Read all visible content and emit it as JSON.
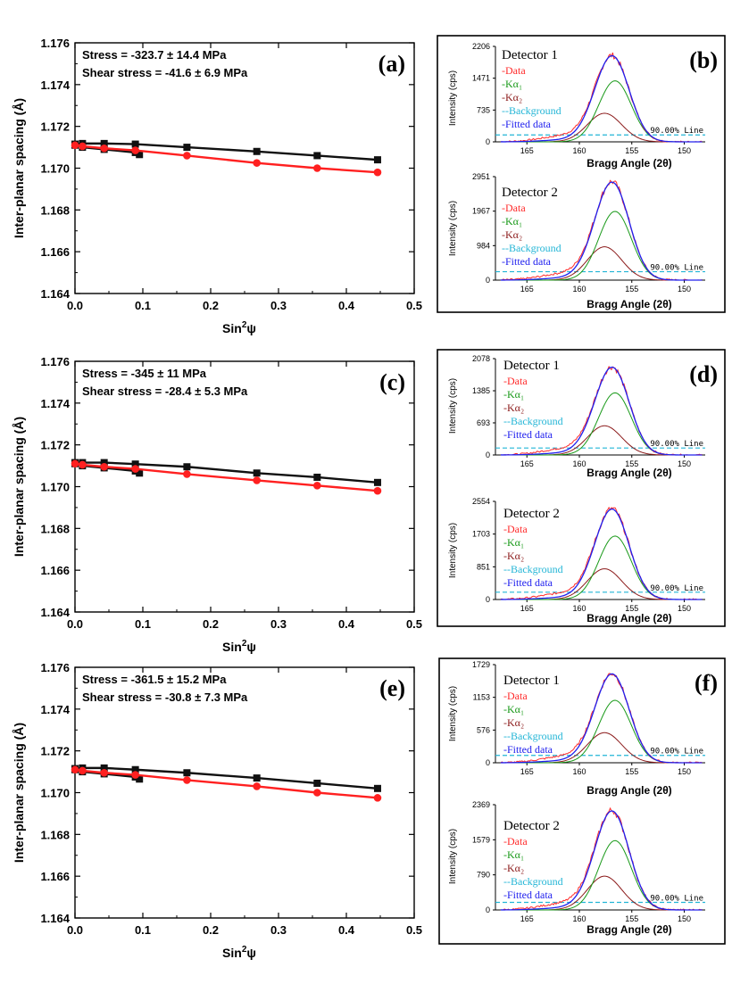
{
  "colors": {
    "black_series": "#111111",
    "red_series": "#ff2020",
    "data": "#ff2a2a",
    "ka1": "#1a9a1a",
    "ka2": "#8b1a1a",
    "background": "#22b5d6",
    "fitted": "#2020ee"
  },
  "chart_data": [
    {
      "type": "scatter",
      "panel": "(a)",
      "xlabel": "Sin",
      "xlabel_sup": "2",
      "xlabel_suffix": "ψ",
      "ylabel": "Inter-planar spacing (Å)",
      "xlim": [
        0,
        0.5
      ],
      "ylim": [
        1.164,
        1.176
      ],
      "xticks": [
        "0.0",
        "0.1",
        "0.2",
        "0.3",
        "0.4",
        "0.5"
      ],
      "yticks": [
        "1.164",
        "1.166",
        "1.168",
        "1.170",
        "1.172",
        "1.174",
        "1.176"
      ],
      "annotations": [
        "Stress = -323.7 ± 14.4 MPa",
        "Shear stress = -41.6 ± 6.9 MPa"
      ],
      "series": [
        {
          "color": "black",
          "marker": "square",
          "x": [
            0.0,
            0.011,
            0.043,
            0.089,
            0.165,
            0.268,
            0.357,
            0.446
          ],
          "y": [
            1.17115,
            1.17118,
            1.17118,
            1.17115,
            1.171,
            1.1708,
            1.1706,
            1.1704
          ]
        },
        {
          "color": "black",
          "marker": "square",
          "x": [
            0.0,
            0.011,
            0.043,
            0.089,
            0.095
          ],
          "y": [
            1.1711,
            1.171,
            1.1709,
            1.17075,
            1.17065
          ]
        },
        {
          "color": "red",
          "marker": "circle",
          "x": [
            0.0,
            0.011,
            0.043,
            0.089,
            0.165,
            0.268,
            0.357,
            0.446
          ],
          "y": [
            1.1711,
            1.17105,
            1.17095,
            1.17085,
            1.1706,
            1.17025,
            1.17,
            1.1698
          ]
        }
      ]
    },
    {
      "type": "line",
      "panel": "(b)",
      "detectors": [
        {
          "name": "Detector 1",
          "yticks": [
            "0",
            "735",
            "1471",
            "2206"
          ],
          "ymax": 2206,
          "peak": 2150,
          "ka1_peak": 1410,
          "ka2_peak": 660,
          "background_level": 160
        },
        {
          "name": "Detector 2",
          "yticks": [
            "0",
            "984",
            "1967",
            "2951"
          ],
          "ymax": 2951,
          "peak": 2900,
          "ka1_peak": 1960,
          "ka2_peak": 950,
          "background_level": 240
        }
      ],
      "legend": [
        "-Data",
        "-Kα₁",
        "-Kα₂",
        "--Background",
        "-Fitted data"
      ],
      "xticks": [
        "165",
        "160",
        "155",
        "150"
      ],
      "xlabel": "Bragg Angle (2θ)",
      "ylabel": "Intensity (cps)",
      "line_label": "90.00% Line"
    },
    {
      "type": "scatter",
      "panel": "(c)",
      "xlabel": "Sin",
      "xlabel_sup": "2",
      "xlabel_suffix": "ψ",
      "ylabel": "Inter-planar spacing (Å)",
      "xlim": [
        0,
        0.5
      ],
      "ylim": [
        1.164,
        1.176
      ],
      "xticks": [
        "0.0",
        "0.1",
        "0.2",
        "0.3",
        "0.4",
        "0.5"
      ],
      "yticks": [
        "1.164",
        "1.166",
        "1.168",
        "1.170",
        "1.172",
        "1.174",
        "1.176"
      ],
      "annotations": [
        "Stress = -345 ± 11 MPa",
        "Shear stress = -28.4 ± 5.3 MPa"
      ],
      "series": [
        {
          "color": "black",
          "marker": "square",
          "x": [
            0.0,
            0.011,
            0.043,
            0.089,
            0.165,
            0.268,
            0.357,
            0.446
          ],
          "y": [
            1.17115,
            1.17115,
            1.17115,
            1.17108,
            1.17095,
            1.17065,
            1.17045,
            1.1702
          ]
        },
        {
          "color": "black",
          "marker": "square",
          "x": [
            0.0,
            0.011,
            0.043,
            0.089,
            0.095
          ],
          "y": [
            1.1711,
            1.171,
            1.1709,
            1.17075,
            1.17065
          ]
        },
        {
          "color": "red",
          "marker": "circle",
          "x": [
            0.0,
            0.011,
            0.043,
            0.089,
            0.165,
            0.268,
            0.357,
            0.446
          ],
          "y": [
            1.1711,
            1.17105,
            1.17095,
            1.17085,
            1.1706,
            1.1703,
            1.17005,
            1.1698
          ]
        }
      ]
    },
    {
      "type": "line",
      "panel": "(d)",
      "detectors": [
        {
          "name": "Detector 1",
          "yticks": [
            "0",
            "693",
            "1385",
            "2078"
          ],
          "ymax": 2078,
          "peak": 2040,
          "ka1_peak": 1340,
          "ka2_peak": 630,
          "background_level": 150
        },
        {
          "name": "Detector 2",
          "yticks": [
            "0",
            "851",
            "1703",
            "2554"
          ],
          "ymax": 2554,
          "peak": 2450,
          "ka1_peak": 1650,
          "ka2_peak": 800,
          "background_level": 190
        }
      ],
      "legend": [
        "-Data",
        "-Kα₁",
        "-Kα₂",
        "--Background",
        "-Fitted data"
      ],
      "xticks": [
        "165",
        "160",
        "155",
        "150"
      ],
      "xlabel": "Bragg Angle (2θ)",
      "ylabel": "Intensity (cps)",
      "line_label": "90.00% Line"
    },
    {
      "type": "scatter",
      "panel": "(e)",
      "xlabel": "Sin",
      "xlabel_sup": "2",
      "xlabel_suffix": "ψ",
      "ylabel": "Inter-planar spacing (Å)",
      "xlim": [
        0,
        0.5
      ],
      "ylim": [
        1.164,
        1.176
      ],
      "xticks": [
        "0.0",
        "0.1",
        "0.2",
        "0.3",
        "0.4",
        "0.5"
      ],
      "yticks": [
        "1.164",
        "1.166",
        "1.168",
        "1.170",
        "1.172",
        "1.174",
        "1.176"
      ],
      "annotations": [
        "Stress = -361.5 ± 15.2 MPa",
        "Shear stress = -30.8 ± 7.3 MPa"
      ],
      "series": [
        {
          "color": "black",
          "marker": "square",
          "x": [
            0.0,
            0.011,
            0.043,
            0.089,
            0.165,
            0.268,
            0.357,
            0.446
          ],
          "y": [
            1.17115,
            1.17118,
            1.17118,
            1.1711,
            1.17095,
            1.1707,
            1.17045,
            1.1702
          ]
        },
        {
          "color": "black",
          "marker": "square",
          "x": [
            0.0,
            0.011,
            0.043,
            0.089,
            0.095
          ],
          "y": [
            1.1711,
            1.171,
            1.1709,
            1.17075,
            1.17065
          ]
        },
        {
          "color": "red",
          "marker": "circle",
          "x": [
            0.0,
            0.011,
            0.043,
            0.089,
            0.165,
            0.268,
            0.357,
            0.446
          ],
          "y": [
            1.1711,
            1.17105,
            1.17095,
            1.17085,
            1.1706,
            1.1703,
            1.17,
            1.16975
          ]
        }
      ]
    },
    {
      "type": "line",
      "panel": "(f)",
      "detectors": [
        {
          "name": "Detector 1",
          "yticks": [
            "0",
            "576",
            "1153",
            "1729"
          ],
          "ymax": 1729,
          "peak": 1690,
          "ka1_peak": 1100,
          "ka2_peak": 530,
          "background_level": 130
        },
        {
          "name": "Detector 2",
          "yticks": [
            "0",
            "790",
            "1579",
            "2369"
          ],
          "ymax": 2369,
          "peak": 2300,
          "ka1_peak": 1560,
          "ka2_peak": 760,
          "background_level": 170
        }
      ],
      "legend": [
        "-Data",
        "-Kα₁",
        "-Kα₂",
        "--Background",
        "-Fitted data"
      ],
      "xticks": [
        "165",
        "160",
        "155",
        "150"
      ],
      "xlabel": "Bragg Angle (2θ)",
      "ylabel": "Intensity (cps)",
      "line_label": "90.00% Line"
    }
  ]
}
